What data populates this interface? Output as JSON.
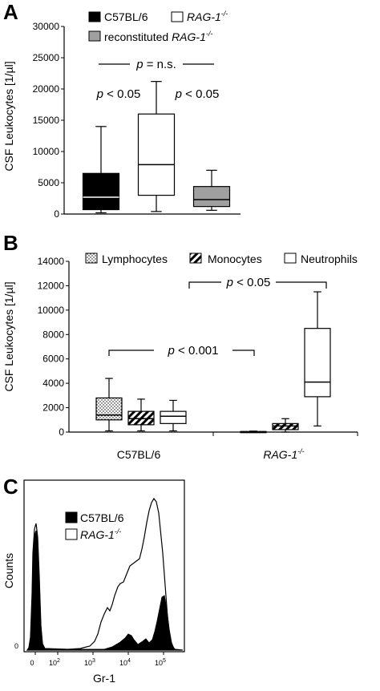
{
  "chart_data": [
    {
      "panel": "A",
      "type": "box",
      "ylabel": "CSF Leukocytes [1/µl]",
      "ylim": [
        0,
        30000
      ],
      "yticks": [
        "0",
        "5000",
        "10000",
        "15000",
        "20000",
        "25000",
        "30000"
      ],
      "legend": [
        "C57BL/6",
        "RAG-1",
        "reconstituted RAG-1"
      ],
      "legend_prefix": "reconstituted ",
      "legend_italic": "RAG-1",
      "superscript": "-/-",
      "series": [
        {
          "name": "C57BL/6",
          "fill": "#000000",
          "median_color": "#ffffff",
          "min": 200,
          "q1": 700,
          "median": 2700,
          "q3": 6500,
          "max": 14000
        },
        {
          "name": "RAG-1-/-",
          "fill": "#ffffff",
          "median_color": "#000000",
          "min": 400,
          "q1": 3000,
          "median": 7900,
          "q3": 16000,
          "max": 21200
        },
        {
          "name": "reconstituted RAG-1-/-",
          "fill": "#a0a0a0",
          "median_color": "#000000",
          "min": 600,
          "q1": 1200,
          "median": 2300,
          "q3": 4400,
          "max": 7000
        }
      ],
      "annotations": {
        "p_ns_p": "p",
        "p_ns_rest": " = n.s.",
        "p1_p": "p",
        "p1_rest": " < 0.05",
        "p2_p": "p",
        "p2_rest": " < 0.05"
      }
    },
    {
      "panel": "B",
      "type": "box",
      "ylabel": "CSF Leukocytes [1/µl]",
      "ylim": [
        0,
        14000
      ],
      "yticks": [
        "0",
        "2000",
        "4000",
        "6000",
        "8000",
        "10000",
        "12000",
        "14000"
      ],
      "categories": [
        "C57BL/6",
        "RAG-1"
      ],
      "category_superscript": "-/-",
      "legend": [
        "Lymphocytes",
        "Monocytes",
        "Neutrophils"
      ],
      "series": [
        {
          "name": "Lymphocytes",
          "pattern": "dots",
          "boxes": [
            {
              "min": 100,
              "q1": 1000,
              "median": 1400,
              "q3": 2800,
              "max": 4400
            },
            {
              "min": 0,
              "q1": 0,
              "median": 0,
              "q3": 50,
              "max": 80
            }
          ]
        },
        {
          "name": "Monocytes",
          "pattern": "hatch",
          "boxes": [
            {
              "min": 100,
              "q1": 600,
              "median": 1100,
              "q3": 1700,
              "max": 2700
            },
            {
              "min": 0,
              "q1": 200,
              "median": 500,
              "q3": 700,
              "max": 1100
            }
          ]
        },
        {
          "name": "Neutrophils",
          "pattern": "none",
          "boxes": [
            {
              "min": 100,
              "q1": 700,
              "median": 1300,
              "q3": 1700,
              "max": 2600
            },
            {
              "min": 500,
              "q1": 2900,
              "median": 4100,
              "q3": 8500,
              "max": 11500
            }
          ]
        }
      ],
      "annotations": {
        "p1_p": "p",
        "p1_rest": " < 0.001",
        "p2_p": "p",
        "p2_rest": " < 0.05"
      }
    },
    {
      "panel": "C",
      "type": "histogram",
      "xlabel": "Gr-1",
      "ylabel": "Counts",
      "y_zero_label": "0",
      "xticks": [
        "0",
        "10",
        "10",
        "10",
        "10"
      ],
      "xtick_exponents": [
        "",
        "2",
        "3",
        "4",
        "5"
      ],
      "legend": [
        "C57BL/6",
        "RAG-1"
      ],
      "legend_superscript": "-/-"
    }
  ],
  "panels": {
    "a": "A",
    "b": "B",
    "c": "C"
  }
}
